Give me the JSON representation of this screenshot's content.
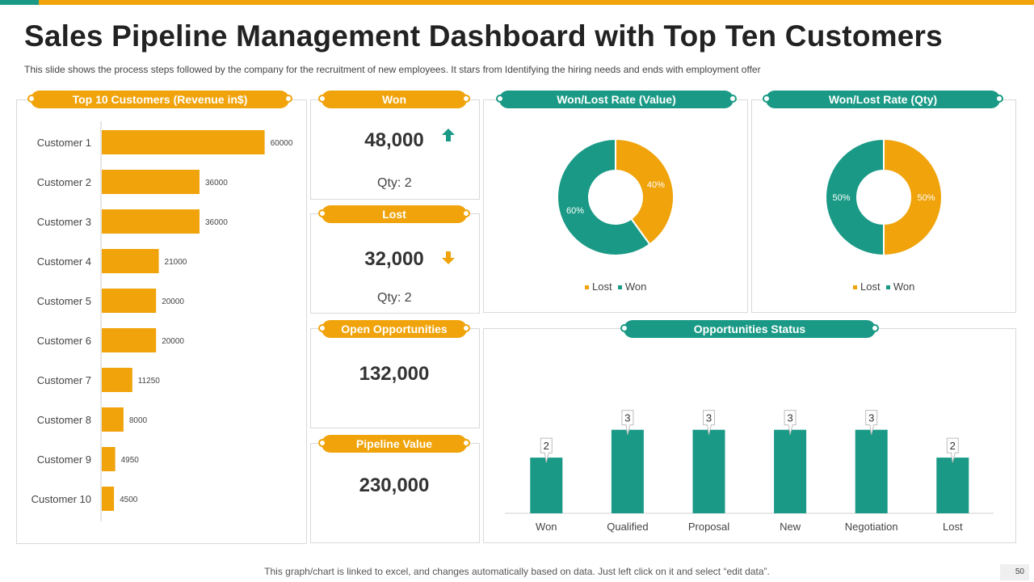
{
  "header": {
    "title": "Sales Pipeline Management Dashboard with Top Ten Customers",
    "subtitle": "This slide shows the process steps followed by the company for the recruitment of new employees. It stars from Identifying the hiring needs and ends with employment offer"
  },
  "colors": {
    "orange": "#f0a30a",
    "teal": "#1a9a86"
  },
  "kpis": {
    "won": {
      "label": "Won",
      "value": "48,000",
      "qty": "Qty: 2",
      "icon": "arrow-up-icon"
    },
    "lost": {
      "label": "Lost",
      "value": "32,000",
      "qty": "Qty: 2",
      "icon": "arrow-down-icon"
    },
    "open": {
      "label": "Open Opportunities",
      "value": "132,000"
    },
    "pipeline": {
      "label": "Pipeline Value",
      "value": "230,000"
    }
  },
  "chart_data": [
    {
      "type": "bar",
      "orientation": "horizontal",
      "title": "Top 10 Customers (Revenue in$)",
      "categories": [
        "Customer 1",
        "Customer 2",
        "Customer 3",
        "Customer 4",
        "Customer 5",
        "Customer 6",
        "Customer 7",
        "Customer 8",
        "Customer 9",
        "Customer 10"
      ],
      "values": [
        60000,
        36000,
        36000,
        21000,
        20000,
        20000,
        11250,
        8000,
        4950,
        4500
      ],
      "xlim": [
        0,
        75000
      ]
    },
    {
      "type": "pie",
      "title": "Won/Lost Rate (Value)",
      "slices": [
        {
          "label": "Lost",
          "value": 40
        },
        {
          "label": "Won",
          "value": 60
        }
      ],
      "value_labels": [
        "40%",
        "60%"
      ],
      "legend": [
        "Lost",
        "Won"
      ]
    },
    {
      "type": "pie",
      "title": "Won/Lost Rate (Qty)",
      "slices": [
        {
          "label": "Lost",
          "value": 50
        },
        {
          "label": "Won",
          "value": 50
        }
      ],
      "value_labels": [
        "50%",
        "50%"
      ],
      "legend": [
        "Lost",
        "Won"
      ]
    },
    {
      "type": "bar",
      "title": "Opportunities Status",
      "categories": [
        "Won",
        "Qualified",
        "Proposal",
        "New",
        "Negotiation",
        "Lost"
      ],
      "values": [
        2,
        3,
        3,
        3,
        3,
        2
      ],
      "ylim": [
        0,
        4.5
      ]
    }
  ],
  "footer": {
    "note": "This graph/chart is linked to excel, and changes automatically based on data.  Just left click on it and select “edit data”.",
    "page": "50"
  }
}
